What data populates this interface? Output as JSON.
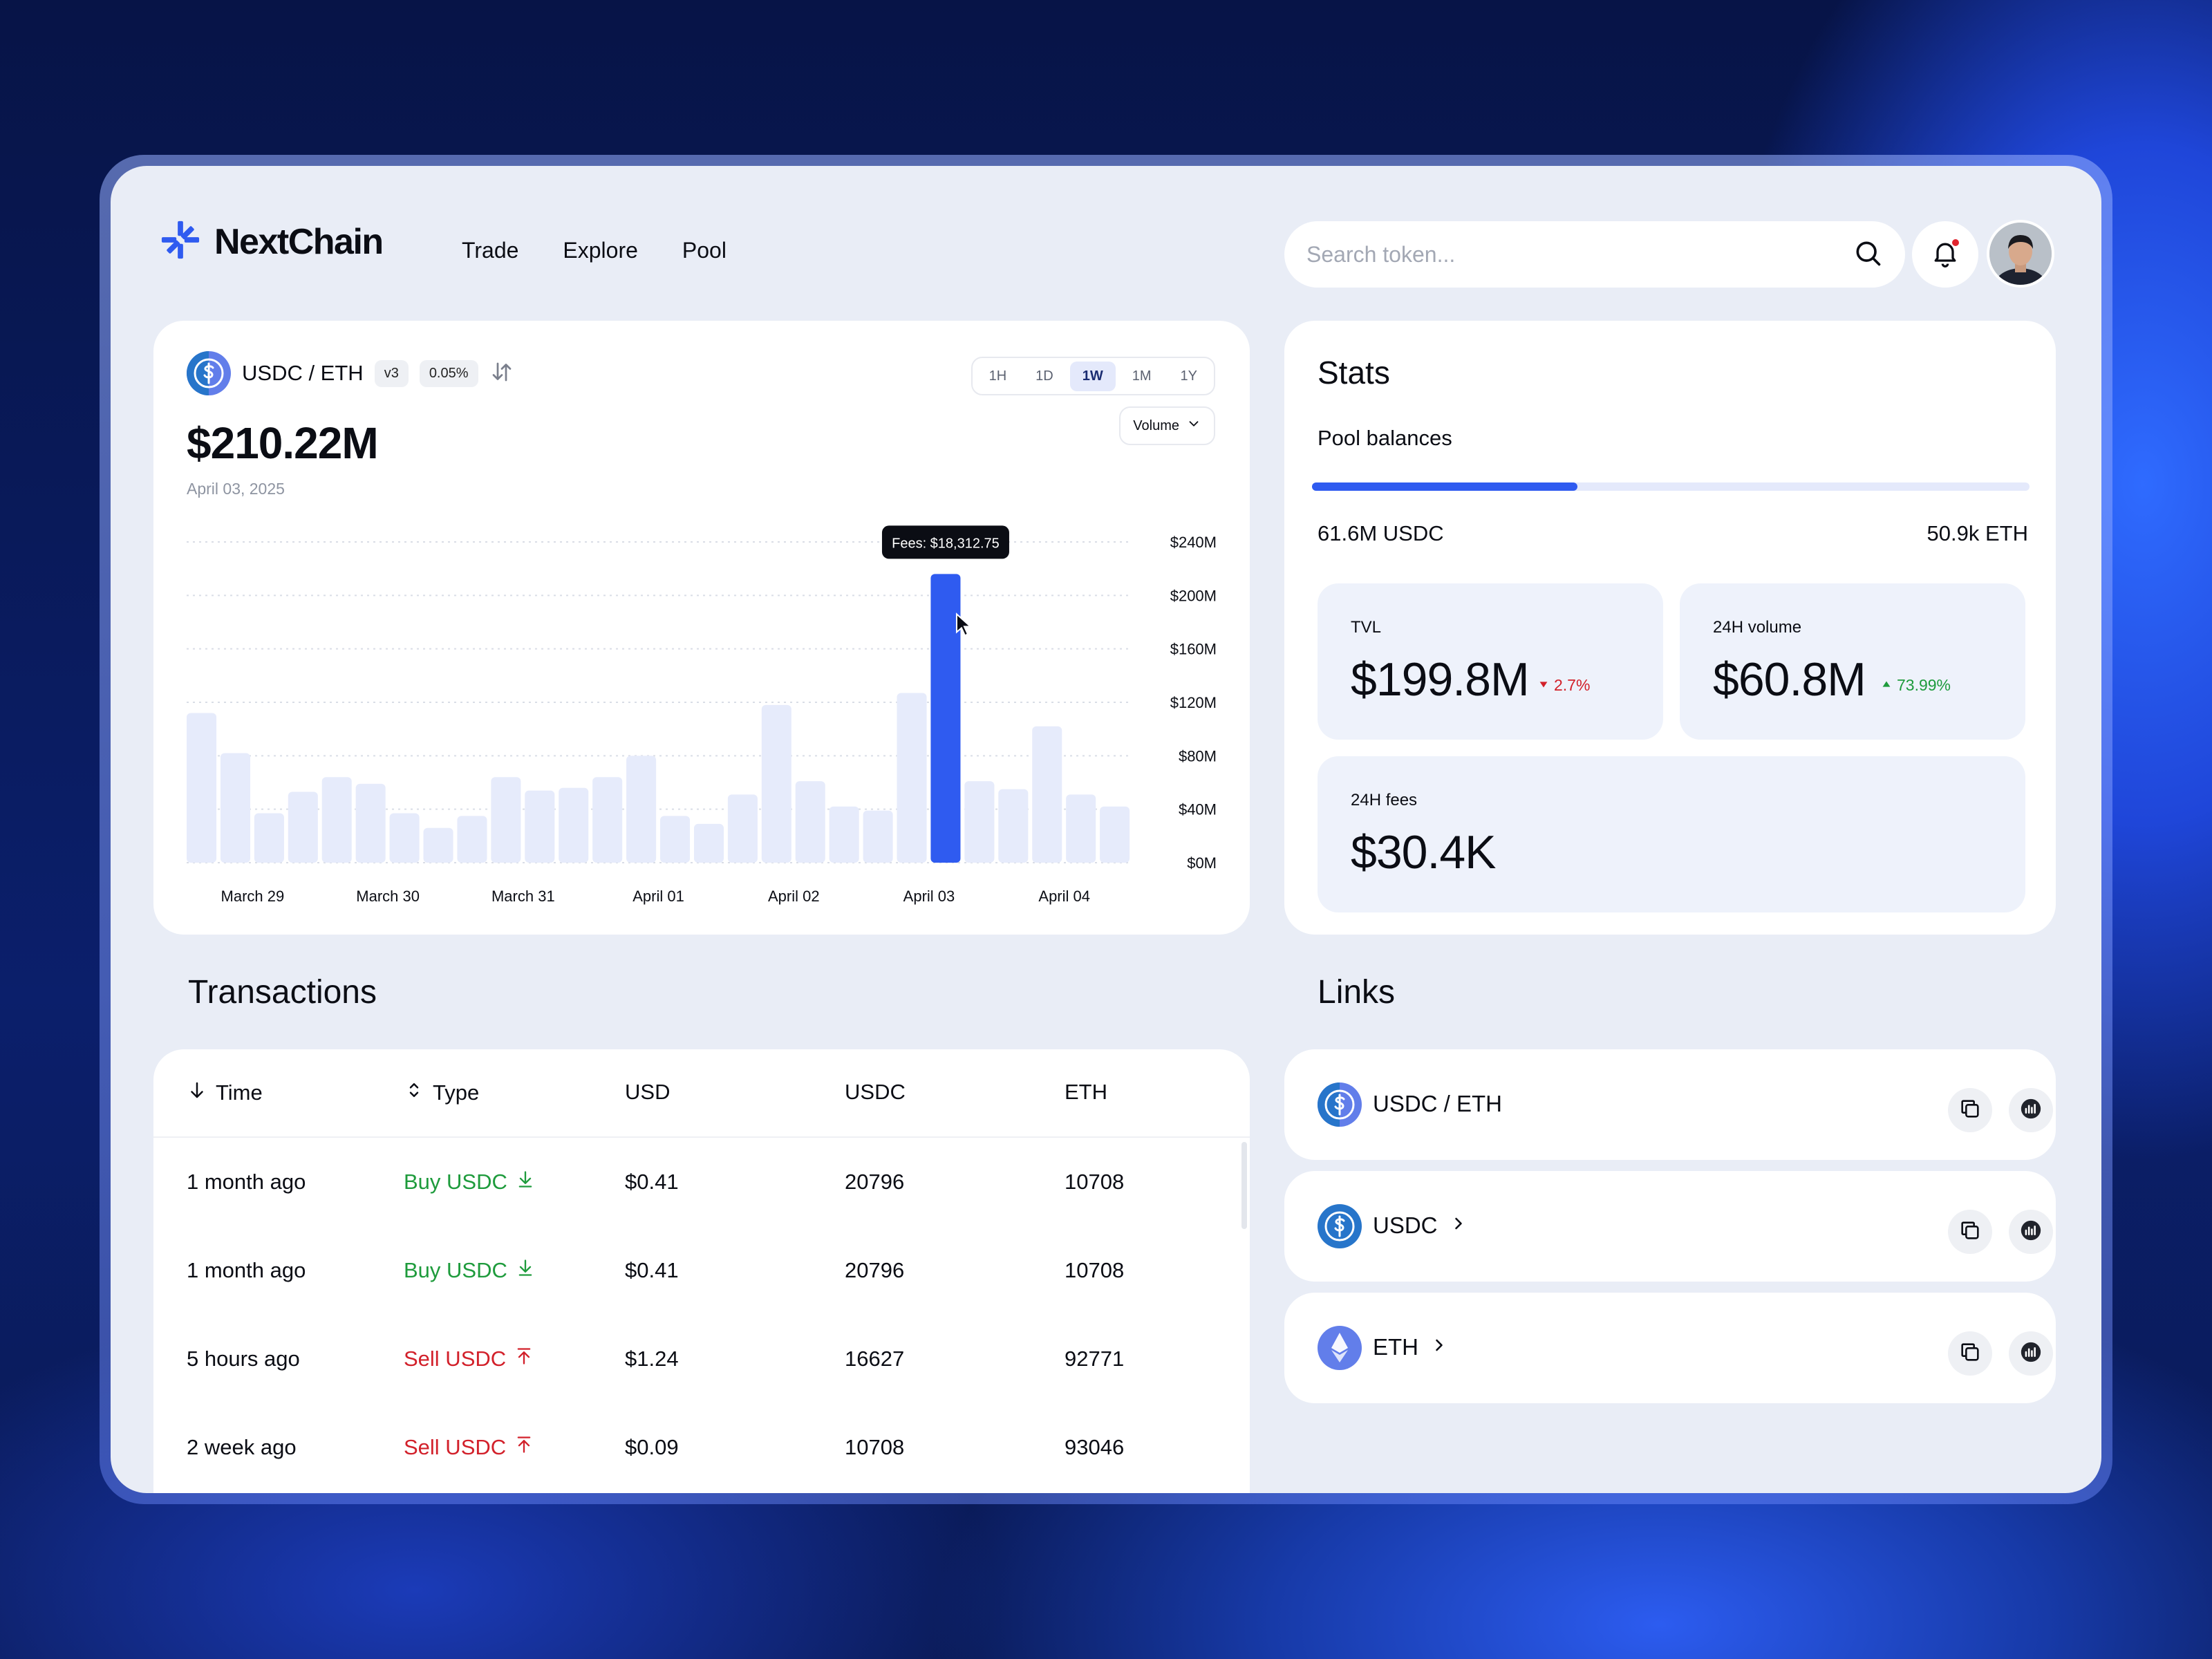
{
  "app": {
    "name": "NextChain"
  },
  "nav": {
    "items": [
      "Trade",
      "Explore",
      "Pool"
    ]
  },
  "search": {
    "placeholder": "Search token..."
  },
  "pair": {
    "name": "USDC / ETH",
    "version": "v3",
    "fee_tier": "0.05%",
    "value": "$210.22M",
    "date": "April 03, 2025"
  },
  "timeframes": {
    "items": [
      "1H",
      "1D",
      "1W",
      "1M",
      "1Y"
    ],
    "active": "1W"
  },
  "metric_select": {
    "label": "Volume"
  },
  "chart_data": {
    "type": "bar",
    "y_ticks": [
      "$240M",
      "$200M",
      "$160M",
      "$120M",
      "$80M",
      "$40M",
      "$0M"
    ],
    "ylim": [
      0,
      240
    ],
    "x_tick_labels": [
      "March 29",
      "March 30",
      "March 31",
      "April 01",
      "April 02",
      "April 03",
      "April 04"
    ],
    "values": [
      112,
      82,
      37,
      53,
      64,
      59,
      37,
      26,
      35,
      64,
      54,
      56,
      64,
      80,
      35,
      29,
      51,
      118,
      61,
      42,
      39,
      127,
      216,
      61,
      55,
      102,
      51,
      42
    ],
    "highlight_index": 22,
    "tooltip": "Fees: $18,312.75",
    "colors": {
      "bar": "#e6ebfb",
      "highlight": "#2f5bf0"
    }
  },
  "stats": {
    "title": "Stats",
    "pool_balances": {
      "title": "Pool balances",
      "left": "61.6M USDC",
      "right": "50.9k ETH",
      "fill_fraction": 0.37
    },
    "tvl": {
      "label": "TVL",
      "value": "$199.8M",
      "change": "2.7%",
      "direction": "down"
    },
    "volume_24h": {
      "label": "24H volume",
      "value": "$60.8M",
      "change": "73.99%",
      "direction": "up"
    },
    "fees_24h": {
      "label": "24H fees",
      "value": "$30.4K"
    }
  },
  "transactions": {
    "title": "Transactions",
    "columns": [
      "Time",
      "Type",
      "USD",
      "USDC",
      "ETH"
    ],
    "rows": [
      {
        "time": "1 month ago",
        "type": "Buy USDC",
        "kind": "buy",
        "usd": "$0.41",
        "usdc": "20796",
        "eth": "10708"
      },
      {
        "time": "1 month ago",
        "type": "Buy USDC",
        "kind": "buy",
        "usd": "$0.41",
        "usdc": "20796",
        "eth": "10708"
      },
      {
        "time": "5 hours ago",
        "type": "Sell USDC",
        "kind": "sell",
        "usd": "$1.24",
        "usdc": "16627",
        "eth": "92771"
      },
      {
        "time": "2 week ago",
        "type": "Sell USDC",
        "kind": "sell",
        "usd": "$0.09",
        "usdc": "10708",
        "eth": "93046"
      }
    ]
  },
  "links": {
    "title": "Links",
    "items": [
      {
        "name": "USDC / ETH",
        "icon": "usdc-eth-pair-icon",
        "chevron": false
      },
      {
        "name": "USDC",
        "icon": "usdc-coin-icon",
        "chevron": true
      },
      {
        "name": "ETH",
        "icon": "eth-coin-icon",
        "chevron": true
      }
    ]
  },
  "colors": {
    "accent": "#2f5bf0",
    "positive": "#1e9b3c",
    "negative": "#d2202a",
    "usdc_blue": "#2775ca",
    "eth_purple": "#627eea"
  }
}
